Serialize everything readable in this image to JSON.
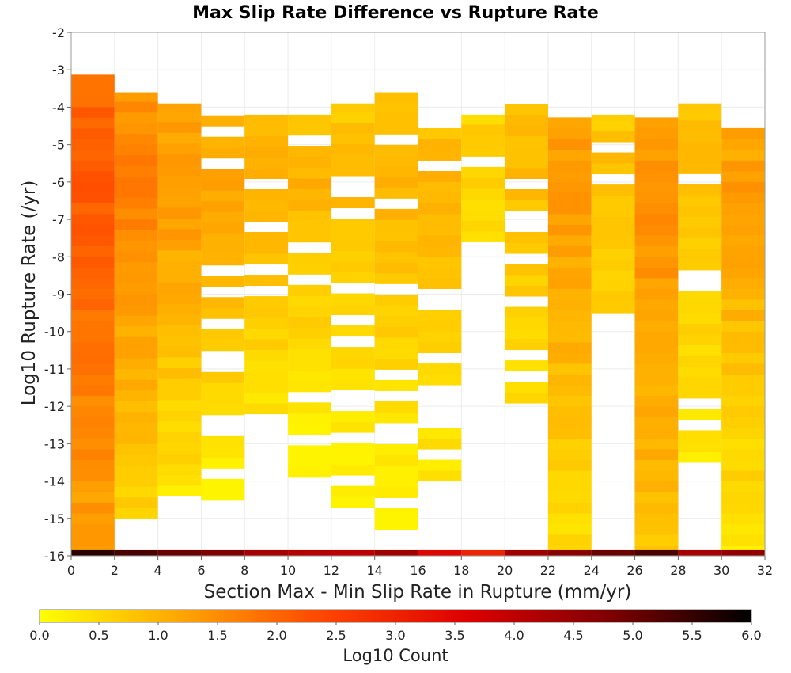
{
  "chart_data": {
    "type": "heatmap",
    "title": "Max Slip Rate Difference vs Rupture Rate",
    "xlabel": "Section Max - Min Slip Rate in Rupture (mm/yr)",
    "ylabel": "Log10 Rupture Rate (/yr)",
    "xlim": [
      0,
      32
    ],
    "ylim": [
      -16,
      -2
    ],
    "x_ticks": [
      "0",
      "2",
      "4",
      "6",
      "8",
      "10",
      "12",
      "14",
      "16",
      "18",
      "20",
      "22",
      "24",
      "26",
      "28",
      "30",
      "32"
    ],
    "y_ticks": [
      "-2",
      "-3",
      "-4",
      "-5",
      "-6",
      "-7",
      "-8",
      "-9",
      "-10",
      "-11",
      "-12",
      "-13",
      "-14",
      "-15",
      "-16"
    ],
    "bin_width_x": 2,
    "bin_height_y": 0.286,
    "colorbar": {
      "label": "Log10 Count",
      "range": [
        0,
        6
      ],
      "ticks": [
        "0.0",
        "0.5",
        "1.0",
        "1.5",
        "2.0",
        "2.5",
        "3.0",
        "3.5",
        "4.0",
        "4.5",
        "5.0",
        "5.5",
        "6.0"
      ],
      "colors": [
        "#ffff00",
        "#ffa500",
        "#ff4500",
        "#dd0000",
        "#800000",
        "#000000"
      ]
    },
    "columns": [
      {
        "x_start": 0,
        "y_range": [
          -16,
          -3.0
        ],
        "value": 1.8,
        "peak_y": -6.0,
        "peak_value": 2.2
      },
      {
        "x_start": 2,
        "y_range": [
          -15.0,
          -3.6
        ],
        "value": 1.2,
        "peak_y": -6.0,
        "peak_value": 1.7
      },
      {
        "x_start": 4,
        "y_range": [
          -14.4,
          -3.9
        ],
        "value": 0.9,
        "peak_y": -6.0,
        "peak_value": 1.4
      },
      {
        "x_start": 6,
        "y_range": [
          -14.8,
          -4.2
        ],
        "value": 0.7,
        "peak_y": -6.0,
        "peak_value": 1.2
      },
      {
        "x_start": 8,
        "y_range": [
          -12.2,
          -4.2
        ],
        "value": 0.6,
        "peak_y": -6.0,
        "peak_value": 1.1
      },
      {
        "x_start": 10,
        "y_range": [
          -13.9,
          -4.2
        ],
        "value": 0.5,
        "peak_y": -6.0,
        "peak_value": 1.0
      },
      {
        "x_start": 12,
        "y_range": [
          -14.7,
          -3.9
        ],
        "value": 0.5,
        "peak_y": -6.0,
        "peak_value": 0.9
      },
      {
        "x_start": 14,
        "y_range": [
          -15.3,
          -3.6
        ],
        "value": 0.6,
        "peak_y": -6.0,
        "peak_value": 1.0
      },
      {
        "x_start": 16,
        "y_range": [
          -14.0,
          -4.5
        ],
        "value": 0.6,
        "peak_y": -6.5,
        "peak_value": 1.0
      },
      {
        "x_start": 18,
        "y_range": [
          -7.6,
          -4.2
        ],
        "value": 0.4,
        "peak_y": -5.0,
        "peak_value": 0.6
      },
      {
        "x_start": 20,
        "y_range": [
          -12.2,
          -3.9
        ],
        "value": 0.6,
        "peak_y": -5.0,
        "peak_value": 0.9
      },
      {
        "x_start": 22,
        "y_range": [
          -16,
          -4.2
        ],
        "value": 1.0,
        "peak_y": -6.0,
        "peak_value": 1.4
      },
      {
        "x_start": 24,
        "y_range": [
          -9.5,
          -4.2
        ],
        "value": 0.6,
        "peak_y": -5.5,
        "peak_value": 0.8
      },
      {
        "x_start": 26,
        "y_range": [
          -16,
          -4.2
        ],
        "value": 1.2,
        "peak_y": -6.5,
        "peak_value": 1.5
      },
      {
        "x_start": 28,
        "y_range": [
          -13.5,
          -3.9
        ],
        "value": 0.6,
        "peak_y": -5.0,
        "peak_value": 0.9
      },
      {
        "x_start": 30,
        "y_range": [
          -16,
          -4.5
        ],
        "value": 0.9,
        "peak_y": -6.0,
        "peak_value": 1.3
      }
    ],
    "bottom_row": {
      "y": -16,
      "values": [
        5.6,
        5.3,
        5.0,
        4.8,
        4.3,
        4.1,
        4.0,
        4.4,
        3.5,
        3.0,
        4.4,
        4.7,
        5.0,
        5.3,
        4.3,
        4.6
      ]
    },
    "grid": true
  }
}
